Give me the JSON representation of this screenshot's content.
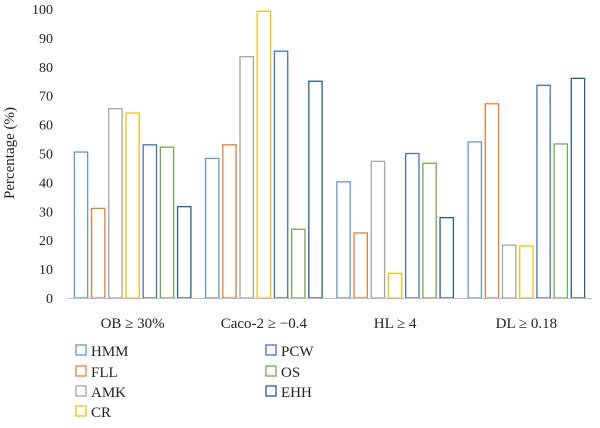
{
  "chart_data": {
    "type": "bar",
    "title": "",
    "xlabel": "",
    "ylabel": "Percentage (%)",
    "ylim": [
      0,
      100
    ],
    "yticks": [
      0,
      10,
      20,
      30,
      40,
      50,
      60,
      70,
      80,
      90,
      100
    ],
    "grid": false,
    "legend_position": "bottom-left",
    "bar_style": "outlined",
    "categories": [
      "OB ≥ 30%",
      "Caco-2 ≥ −0.4",
      "HL ≥ 4",
      "DL ≥ 0.18"
    ],
    "series": [
      {
        "name": "HMM",
        "color": "#5b9bd5",
        "values": [
          50.5,
          48.3,
          40.2,
          54.0
        ]
      },
      {
        "name": "FLL",
        "color": "#ed7d31",
        "values": [
          31.0,
          53.0,
          22.5,
          67.2
        ]
      },
      {
        "name": "AMK",
        "color": "#a5a5a5",
        "values": [
          65.5,
          83.5,
          47.3,
          18.3
        ]
      },
      {
        "name": "CR",
        "color": "#ffc000",
        "values": [
          64.0,
          99.2,
          8.5,
          18.0
        ]
      },
      {
        "name": "PCW",
        "color": "#4472c4",
        "values": [
          53.0,
          85.4,
          50.0,
          73.6
        ]
      },
      {
        "name": "OS",
        "color": "#70ad47",
        "values": [
          52.2,
          23.8,
          46.6,
          53.3
        ]
      },
      {
        "name": "EHH",
        "color": "#255e91",
        "values": [
          31.6,
          75.0,
          27.8,
          76.0
        ]
      }
    ]
  }
}
